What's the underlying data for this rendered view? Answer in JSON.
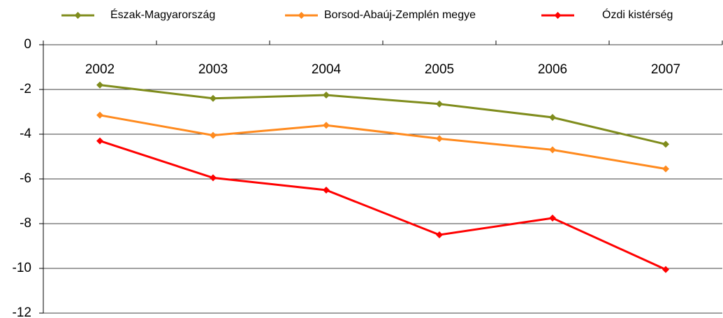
{
  "chart_data": {
    "type": "line",
    "categories": [
      "2002",
      "2003",
      "2004",
      "2005",
      "2006",
      "2007"
    ],
    "series": [
      {
        "name": "Észak-Magyarország",
        "color": "#7f8c1c",
        "values": [
          -1.8,
          -2.4,
          -2.25,
          -2.65,
          -3.25,
          -4.45
        ]
      },
      {
        "name": "Borsod-Abaúj-Zemplén megye",
        "color": "#ff8a1e",
        "values": [
          -3.15,
          -4.05,
          -3.6,
          -4.2,
          -4.7,
          -5.55
        ]
      },
      {
        "name": "Ózdi kistérség",
        "color": "#ff0000",
        "values": [
          -4.3,
          -5.95,
          -6.5,
          -8.5,
          -7.75,
          -10.05
        ]
      }
    ],
    "ylim": [
      -12,
      0
    ],
    "yticks": [
      0,
      -2,
      -4,
      -6,
      -8,
      -10,
      -12
    ],
    "grid": true,
    "legend": "top"
  }
}
